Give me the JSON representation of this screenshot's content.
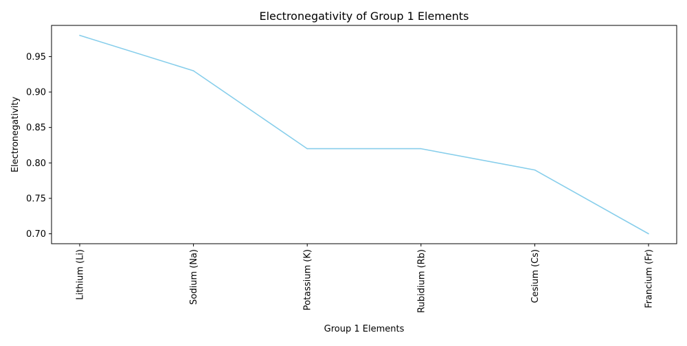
{
  "chart_data": {
    "type": "line",
    "title": "Electronegativity of Group 1 Elements",
    "xlabel": "Group 1 Elements",
    "ylabel": "Electronegativity",
    "categories": [
      "Lithium (Li)",
      "Sodium (Na)",
      "Potassium (K)",
      "Rubidium (Rb)",
      "Cesium (Cs)",
      "Francium (Fr)"
    ],
    "values": [
      0.98,
      0.93,
      0.82,
      0.82,
      0.79,
      0.7
    ],
    "ylim": [
      0.686,
      0.994
    ],
    "yticks": [
      "0.70",
      "0.75",
      "0.80",
      "0.85",
      "0.90",
      "0.95"
    ],
    "grid": false,
    "legend": "none",
    "line_color": "#87ceeb"
  }
}
